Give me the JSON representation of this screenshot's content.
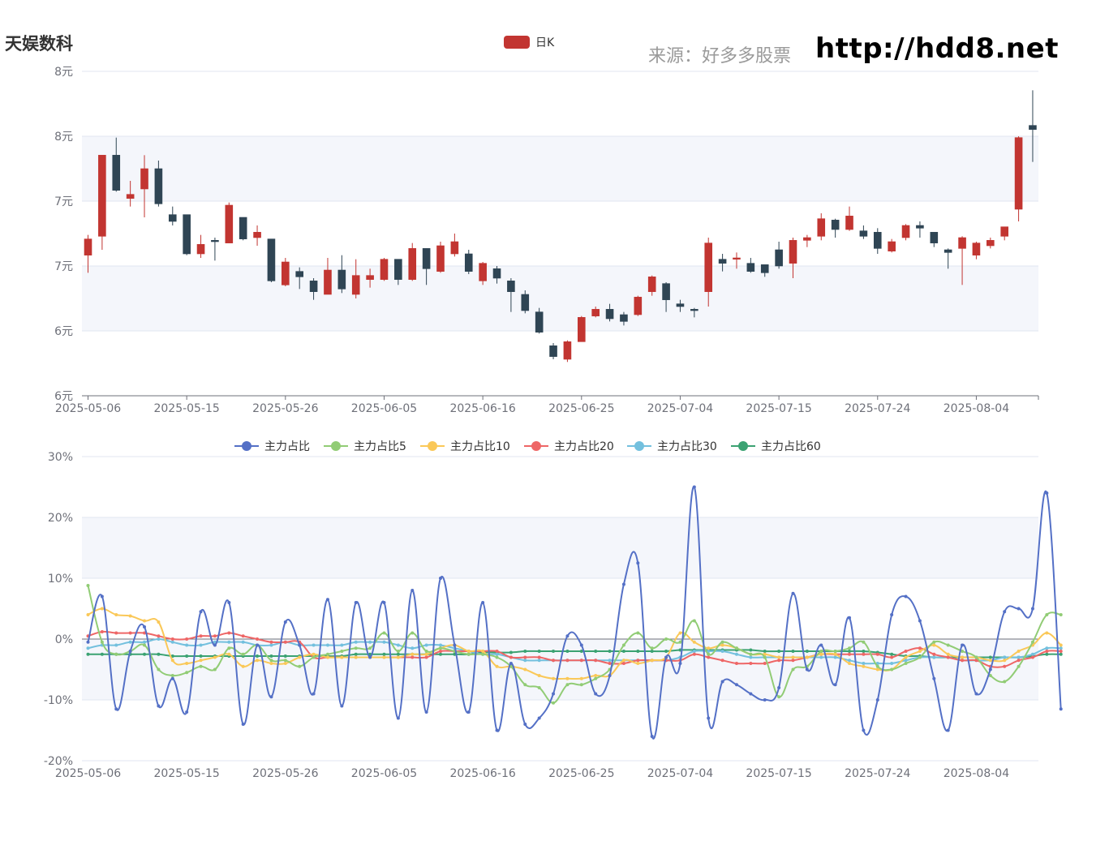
{
  "header": {
    "stock_name": "天娱数科",
    "source_label": "来源：好多多股票",
    "source_url": "http://hdd8.net"
  },
  "colors": {
    "up": "#c23531",
    "down": "#2f4554",
    "band": "#f4f6fb",
    "grid": "#e0e6f1",
    "axis": "#6e7079"
  },
  "chart_data": [
    {
      "type": "candlestick",
      "legend": [
        "日K"
      ],
      "y_tick_labels": [
        "8元",
        "8元",
        "7元",
        "7元",
        "6元",
        "6元"
      ],
      "ylim": [
        5.7,
        8.1
      ],
      "x_tick_labels": [
        "2025-05-06",
        "2025-05-15",
        "2025-05-26",
        "2025-06-05",
        "2025-06-16",
        "2025-06-25",
        "2025-07-04",
        "2025-07-15",
        "2025-07-24",
        "2025-08-04"
      ],
      "x_tick_indices": [
        0,
        7,
        14,
        21,
        28,
        35,
        42,
        49,
        56,
        63
      ],
      "candles": [
        {
          "o": 6.74,
          "c": 6.86,
          "h": 6.89,
          "l": 6.61
        },
        {
          "o": 6.88,
          "c": 7.48,
          "h": 7.48,
          "l": 6.78
        },
        {
          "o": 7.48,
          "c": 7.22,
          "h": 7.61,
          "l": 7.21
        },
        {
          "o": 7.16,
          "c": 7.19,
          "h": 7.29,
          "l": 7.1
        },
        {
          "o": 7.23,
          "c": 7.38,
          "h": 7.48,
          "l": 7.02
        },
        {
          "o": 7.38,
          "c": 7.12,
          "h": 7.44,
          "l": 7.1
        },
        {
          "o": 7.04,
          "c": 6.99,
          "h": 7.1,
          "l": 6.96
        },
        {
          "o": 7.04,
          "c": 6.75,
          "h": 7.04,
          "l": 6.74
        },
        {
          "o": 6.75,
          "c": 6.82,
          "h": 6.89,
          "l": 6.72
        },
        {
          "o": 6.85,
          "c": 6.84,
          "h": 6.87,
          "l": 6.7
        },
        {
          "o": 6.83,
          "c": 7.11,
          "h": 7.13,
          "l": 6.83
        },
        {
          "o": 7.02,
          "c": 6.86,
          "h": 7.02,
          "l": 6.85
        },
        {
          "o": 6.87,
          "c": 6.91,
          "h": 6.96,
          "l": 6.81
        },
        {
          "o": 6.86,
          "c": 6.55,
          "h": 6.86,
          "l": 6.54
        },
        {
          "o": 6.52,
          "c": 6.69,
          "h": 6.72,
          "l": 6.51
        },
        {
          "o": 6.62,
          "c": 6.58,
          "h": 6.65,
          "l": 6.49
        },
        {
          "o": 6.55,
          "c": 6.47,
          "h": 6.57,
          "l": 6.41
        },
        {
          "o": 6.45,
          "c": 6.63,
          "h": 6.72,
          "l": 6.45
        },
        {
          "o": 6.63,
          "c": 6.49,
          "h": 6.74,
          "l": 6.46
        },
        {
          "o": 6.45,
          "c": 6.59,
          "h": 6.71,
          "l": 6.42
        },
        {
          "o": 6.56,
          "c": 6.59,
          "h": 6.64,
          "l": 6.5
        },
        {
          "o": 6.56,
          "c": 6.71,
          "h": 6.72,
          "l": 6.55
        },
        {
          "o": 6.71,
          "c": 6.56,
          "h": 6.71,
          "l": 6.52
        },
        {
          "o": 6.56,
          "c": 6.79,
          "h": 6.83,
          "l": 6.55
        },
        {
          "o": 6.79,
          "c": 6.64,
          "h": 6.79,
          "l": 6.52
        },
        {
          "o": 6.62,
          "c": 6.81,
          "h": 6.84,
          "l": 6.61
        },
        {
          "o": 6.75,
          "c": 6.84,
          "h": 6.9,
          "l": 6.73
        },
        {
          "o": 6.75,
          "c": 6.62,
          "h": 6.78,
          "l": 6.6
        },
        {
          "o": 6.55,
          "c": 6.68,
          "h": 6.69,
          "l": 6.52
        },
        {
          "o": 6.64,
          "c": 6.57,
          "h": 6.66,
          "l": 6.53
        },
        {
          "o": 6.55,
          "c": 6.47,
          "h": 6.57,
          "l": 6.32
        },
        {
          "o": 6.45,
          "c": 6.33,
          "h": 6.48,
          "l": 6.31
        },
        {
          "o": 6.32,
          "c": 6.17,
          "h": 6.35,
          "l": 6.16
        },
        {
          "o": 6.07,
          "c": 5.99,
          "h": 6.09,
          "l": 5.97
        },
        {
          "o": 5.97,
          "c": 6.1,
          "h": 6.11,
          "l": 5.95
        },
        {
          "o": 6.1,
          "c": 6.28,
          "h": 6.29,
          "l": 6.1
        },
        {
          "o": 6.29,
          "c": 6.34,
          "h": 6.36,
          "l": 6.28
        },
        {
          "o": 6.34,
          "c": 6.27,
          "h": 6.38,
          "l": 6.25
        },
        {
          "o": 6.3,
          "c": 6.25,
          "h": 6.32,
          "l": 6.22
        },
        {
          "o": 6.3,
          "c": 6.43,
          "h": 6.44,
          "l": 6.29
        },
        {
          "o": 6.47,
          "c": 6.58,
          "h": 6.59,
          "l": 6.44
        },
        {
          "o": 6.53,
          "c": 6.41,
          "h": 6.54,
          "l": 6.32
        },
        {
          "o": 6.38,
          "c": 6.36,
          "h": 6.41,
          "l": 6.32
        },
        {
          "o": 6.34,
          "c": 6.33,
          "h": 6.35,
          "l": 6.28
        },
        {
          "o": 6.47,
          "c": 6.83,
          "h": 6.87,
          "l": 6.36
        },
        {
          "o": 6.71,
          "c": 6.68,
          "h": 6.75,
          "l": 6.62
        },
        {
          "o": 6.71,
          "c": 6.72,
          "h": 6.76,
          "l": 6.64
        },
        {
          "o": 6.68,
          "c": 6.62,
          "h": 6.72,
          "l": 6.61
        },
        {
          "o": 6.67,
          "c": 6.61,
          "h": 6.66,
          "l": 6.58
        },
        {
          "o": 6.78,
          "c": 6.66,
          "h": 6.84,
          "l": 6.64
        },
        {
          "o": 6.68,
          "c": 6.85,
          "h": 6.87,
          "l": 6.57
        },
        {
          "o": 6.85,
          "c": 6.87,
          "h": 6.89,
          "l": 6.8
        },
        {
          "o": 6.88,
          "c": 7.01,
          "h": 7.05,
          "l": 6.85
        },
        {
          "o": 7.0,
          "c": 6.93,
          "h": 7.01,
          "l": 6.87
        },
        {
          "o": 6.93,
          "c": 7.03,
          "h": 7.1,
          "l": 6.92
        },
        {
          "o": 6.92,
          "c": 6.88,
          "h": 6.96,
          "l": 6.86
        },
        {
          "o": 6.91,
          "c": 6.79,
          "h": 6.94,
          "l": 6.75
        },
        {
          "o": 6.77,
          "c": 6.84,
          "h": 6.86,
          "l": 6.76
        },
        {
          "o": 6.87,
          "c": 6.96,
          "h": 6.97,
          "l": 6.85
        },
        {
          "o": 6.96,
          "c": 6.94,
          "h": 6.99,
          "l": 6.87
        },
        {
          "o": 6.91,
          "c": 6.83,
          "h": 6.91,
          "l": 6.8
        },
        {
          "o": 6.78,
          "c": 6.76,
          "h": 6.79,
          "l": 6.64
        },
        {
          "o": 6.79,
          "c": 6.87,
          "h": 6.88,
          "l": 6.52
        },
        {
          "o": 6.74,
          "c": 6.83,
          "h": 6.84,
          "l": 6.71
        },
        {
          "o": 6.81,
          "c": 6.85,
          "h": 6.87,
          "l": 6.79
        },
        {
          "o": 6.88,
          "c": 6.95,
          "h": 6.95,
          "l": 6.85
        },
        {
          "o": 7.08,
          "c": 7.61,
          "h": 7.62,
          "l": 6.99
        },
        {
          "o": 7.7,
          "c": 7.67,
          "h": 7.96,
          "l": 7.43
        }
      ]
    },
    {
      "type": "line",
      "y_tick_labels": [
        "30%",
        "20%",
        "10%",
        "0%",
        "-10%",
        "-20%"
      ],
      "ylim": [
        -20,
        30
      ],
      "x_tick_labels": [
        "2025-05-06",
        "2025-05-15",
        "2025-05-26",
        "2025-06-05",
        "2025-06-16",
        "2025-06-25",
        "2025-07-04",
        "2025-07-15",
        "2025-07-24",
        "2025-08-04"
      ],
      "x_tick_indices": [
        0,
        7,
        14,
        21,
        28,
        35,
        42,
        49,
        56,
        63
      ],
      "series": [
        {
          "name": "主力占比",
          "color": "#5470c6",
          "values": [
            -0.5,
            7,
            -11.5,
            -2,
            2,
            -11,
            -6.5,
            -12,
            4.5,
            -1,
            6,
            -14,
            -1,
            -9.5,
            2.8,
            -1,
            -9,
            6.5,
            -11,
            6,
            -3,
            6,
            -13,
            8,
            -12,
            10,
            -1,
            -12,
            6,
            -15,
            -4,
            -14,
            -13,
            -9,
            0.5,
            -1,
            -9,
            -6,
            9,
            12.5,
            -16,
            -3,
            -4,
            25,
            -13,
            -7,
            -7.5,
            -9,
            -10,
            -8,
            7.5,
            -5,
            -1,
            -7.5,
            3.5,
            -15,
            -10,
            4,
            7,
            3,
            -6.5,
            -15,
            -1,
            -9,
            -5,
            4.5,
            5,
            5,
            24,
            -11.5
          ]
        },
        {
          "name": "主力占比5",
          "color": "#91cc75",
          "values": [
            8.8,
            -0.5,
            -2.5,
            -2,
            -1,
            -5,
            -6,
            -5.5,
            -4.5,
            -5,
            -1.5,
            -2.5,
            -1,
            -3.5,
            -3.5,
            -4.5,
            -3,
            -2.5,
            -2,
            -1.5,
            -1.5,
            1,
            -2,
            1,
            -2,
            -1.5,
            -2,
            -2.5,
            -2.5,
            -3,
            -4.5,
            -7.5,
            -8,
            -10.5,
            -7.5,
            -7.5,
            -6.5,
            -5,
            -1,
            1,
            -1.5,
            0,
            -0.5,
            3,
            -2.5,
            -0.5,
            -1.5,
            -2.5,
            -3,
            -9.5,
            -5,
            -4.5,
            -2,
            -2,
            -1.5,
            -0.5,
            -4.5,
            -5,
            -4,
            -3,
            -0.5,
            -1,
            -2,
            -3,
            -6,
            -7,
            -4.5,
            -0.5,
            4,
            4
          ]
        },
        {
          "name": "主力占比10",
          "color": "#fac858",
          "values": [
            4,
            5,
            4,
            3.8,
            3,
            2.8,
            -3.5,
            -4,
            -3.5,
            -3,
            -2.5,
            -4.5,
            -3.5,
            -4,
            -4,
            -3,
            -2.5,
            -3,
            -3,
            -3,
            -3,
            -3,
            -3,
            -2.5,
            -2.5,
            -1.5,
            -1,
            -2,
            -2,
            -4.5,
            -4.5,
            -5,
            -6,
            -6.5,
            -6.5,
            -6.5,
            -6,
            -6,
            -3.5,
            -4,
            -3.5,
            -3,
            1,
            -0.5,
            -1.5,
            -1,
            -1.5,
            -2.5,
            -2.5,
            -3,
            -3,
            -3,
            -2.5,
            -2.5,
            -4,
            -4.5,
            -5,
            -5,
            -3,
            -2,
            -1,
            -2.5,
            -3,
            -3,
            -3.5,
            -3.5,
            -2,
            -1,
            1,
            -1
          ]
        },
        {
          "name": "主力占比20",
          "color": "#ee6666",
          "values": [
            0.5,
            1.2,
            1,
            1,
            1,
            0.5,
            0,
            0,
            0.5,
            0.5,
            1,
            0.5,
            0,
            -0.5,
            -0.5,
            -0.5,
            -3,
            -3,
            -3,
            -3,
            -3,
            -3,
            -3,
            -3,
            -3,
            -2,
            -2,
            -2,
            -2,
            -2,
            -3,
            -3,
            -3,
            -3.5,
            -3.5,
            -3.5,
            -3.5,
            -4,
            -4,
            -3.5,
            -3.5,
            -3.5,
            -3.5,
            -2.5,
            -3,
            -3.5,
            -4,
            -4,
            -4,
            -3.5,
            -3.5,
            -3,
            -2.5,
            -2.5,
            -2.5,
            -2.5,
            -2.5,
            -3,
            -2,
            -1.5,
            -2.5,
            -3,
            -3.5,
            -3.5,
            -4.5,
            -4.5,
            -3.5,
            -3,
            -2,
            -2
          ]
        },
        {
          "name": "主力占比30",
          "color": "#73c0de",
          "values": [
            -1.5,
            -1,
            -1,
            -0.5,
            -0.5,
            0,
            -0.5,
            -1,
            -1,
            -0.5,
            -0.5,
            -0.5,
            -1,
            -1,
            -0.5,
            -1,
            -1,
            -1,
            -1,
            -0.5,
            -0.5,
            -0.5,
            -1,
            -1.5,
            -1,
            -1,
            -1.5,
            -2,
            -2.5,
            -2.5,
            -3,
            -3.5,
            -3.5,
            -3.5,
            -3.5,
            -3.5,
            -3.5,
            -3.5,
            -3.5,
            -3.5,
            -3.5,
            -3.5,
            -3,
            -2,
            -2,
            -2,
            -2.5,
            -3,
            -3,
            -3,
            -3,
            -3,
            -3,
            -3,
            -3.5,
            -4,
            -4,
            -4,
            -3.5,
            -3,
            -3,
            -3,
            -3.5,
            -3.5,
            -3.5,
            -3,
            -3,
            -2.5,
            -1.5,
            -1.5
          ]
        },
        {
          "name": "主力占比60",
          "color": "#3ba272",
          "values": [
            -2.5,
            -2.5,
            -2.5,
            -2.5,
            -2.5,
            -2.5,
            -2.8,
            -2.8,
            -2.8,
            -2.8,
            -2.8,
            -2.8,
            -2.8,
            -2.8,
            -2.8,
            -2.8,
            -2.8,
            -2.8,
            -2.8,
            -2.5,
            -2.5,
            -2.5,
            -2.5,
            -2.5,
            -2.5,
            -2.5,
            -2.5,
            -2.5,
            -2.2,
            -2.2,
            -2.2,
            -2,
            -2,
            -2,
            -2,
            -2,
            -2,
            -2,
            -2,
            -2,
            -2,
            -2,
            -1.8,
            -1.8,
            -1.8,
            -1.8,
            -1.8,
            -1.8,
            -2,
            -2,
            -2,
            -2,
            -2,
            -2,
            -2,
            -2,
            -2.2,
            -2.5,
            -2.8,
            -2.8,
            -3,
            -3,
            -3,
            -3,
            -3,
            -3,
            -3,
            -2.8,
            -2.5,
            -2.5
          ]
        }
      ]
    }
  ]
}
